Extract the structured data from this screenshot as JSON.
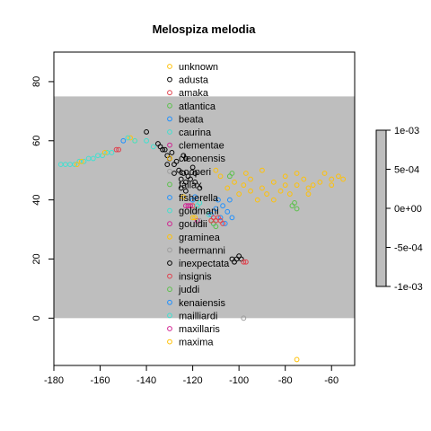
{
  "chart_data": {
    "type": "scatter",
    "title": "Melospiza melodia",
    "xlabel": "",
    "ylabel": "",
    "xlim": [
      -180,
      -50
    ],
    "ylim": [
      -16,
      90
    ],
    "x_ticks": [
      -180,
      -160,
      -140,
      -120,
      -100,
      -80,
      -60
    ],
    "y_ticks": [
      0,
      20,
      40,
      60,
      80
    ],
    "grid": false,
    "background_band": {
      "y_range": [
        0,
        75
      ],
      "color": "#bebebe"
    },
    "legend_position": "top-center",
    "marker": "open-circle",
    "colorbar": {
      "labels": [
        "1e-03",
        "5e-04",
        "0e+00",
        "-5e-04",
        "-1e-03"
      ],
      "range": [
        -0.001,
        0.001
      ],
      "color": "#bebebe"
    },
    "series": [
      {
        "name": "unknown",
        "color": "#ffc107",
        "points": [
          [
            -98,
            45
          ],
          [
            -95,
            47
          ],
          [
            -90,
            44
          ],
          [
            -85,
            46
          ],
          [
            -80,
            48
          ],
          [
            -75,
            45
          ],
          [
            -70,
            44
          ],
          [
            -65,
            46
          ],
          [
            -60,
            47
          ],
          [
            -57,
            48
          ],
          [
            -55,
            47
          ],
          [
            -88,
            42
          ],
          [
            -92,
            40
          ],
          [
            -100,
            42
          ],
          [
            -105,
            44
          ],
          [
            -108,
            48
          ],
          [
            -110,
            50
          ],
          [
            -82,
            43
          ],
          [
            -78,
            42
          ],
          [
            -72,
            47
          ],
          [
            -68,
            45
          ],
          [
            -63,
            49
          ],
          [
            -85,
            40
          ],
          [
            -95,
            43
          ],
          [
            -102,
            46
          ],
          [
            -97,
            49
          ],
          [
            -90,
            50
          ],
          [
            -80,
            45
          ],
          [
            -75,
            49
          ],
          [
            -70,
            42
          ],
          [
            -60,
            45
          ],
          [
            -145,
            60
          ],
          [
            -147,
            61
          ],
          [
            -75,
            -14
          ]
        ]
      },
      {
        "name": "adusta",
        "color": "#000000",
        "points": [
          [
            -117,
            44
          ],
          [
            -119,
            46
          ]
        ]
      },
      {
        "name": "amaka",
        "color": "#e0404c",
        "points": [
          [
            -120,
            38
          ]
        ]
      },
      {
        "name": "atlantica",
        "color": "#5cc14c",
        "points": [
          [
            -77,
            38
          ],
          [
            -76,
            39
          ],
          [
            -75,
            37
          ]
        ]
      },
      {
        "name": "beata",
        "color": "#1e90ff",
        "points": [
          [
            -107,
            38
          ],
          [
            -105,
            36
          ],
          [
            -103,
            34
          ],
          [
            -108,
            34
          ],
          [
            -110,
            37
          ],
          [
            -112,
            35
          ],
          [
            -109,
            40
          ],
          [
            -104,
            40
          ],
          [
            -106,
            32
          ],
          [
            -111,
            32
          ]
        ]
      },
      {
        "name": "caurina",
        "color": "#40e0d0",
        "points": [
          [
            -137,
            58
          ],
          [
            -140,
            60
          ],
          [
            -145,
            60
          ],
          [
            -148,
            61
          ]
        ]
      },
      {
        "name": "clementae",
        "color": "#d02090",
        "points": [
          [
            -118,
            33
          ]
        ]
      },
      {
        "name": "cleonensis",
        "color": "#ffc107",
        "points": [
          [
            -124,
            41
          ]
        ]
      },
      {
        "name": "cooperi",
        "color": "#9e9e9e",
        "points": [
          [
            -117,
            33
          ],
          [
            -116,
            32
          ]
        ]
      },
      {
        "name": "fallax",
        "color": "#5cc14c",
        "points": [
          [
            -111,
            32
          ],
          [
            -112,
            33
          ],
          [
            -110,
            31
          ]
        ]
      },
      {
        "name": "fisherella",
        "color": "#1e90ff",
        "points": [
          [
            -120,
            40
          ],
          [
            -119,
            41
          ]
        ]
      },
      {
        "name": "goldmani",
        "color": "#40e0d0",
        "points": [
          [
            -113,
            35
          ]
        ]
      },
      {
        "name": "gouldii",
        "color": "#d02090",
        "points": [
          [
            -122,
            38
          ],
          [
            -123,
            38
          ]
        ]
      },
      {
        "name": "graminea",
        "color": "#ffc107",
        "points": [
          [
            -119,
            34
          ],
          [
            -120,
            34
          ]
        ]
      },
      {
        "name": "heermanni",
        "color": "#9e9e9e",
        "points": [
          [
            -119,
            36
          ],
          [
            -118,
            37
          ],
          [
            -120,
            36
          ],
          [
            -98,
            0
          ]
        ]
      },
      {
        "name": "inexpectata",
        "color": "#000000",
        "points": [
          [
            -133,
            57
          ],
          [
            -131,
            55
          ],
          [
            -130,
            54
          ],
          [
            -128,
            52
          ],
          [
            -126,
            50
          ],
          [
            -124,
            49
          ],
          [
            -122,
            48
          ],
          [
            -127,
            53
          ],
          [
            -129,
            56
          ],
          [
            -125,
            47
          ],
          [
            -123,
            46
          ],
          [
            -131,
            52
          ],
          [
            -134,
            58
          ],
          [
            -135,
            59
          ],
          [
            -121,
            47
          ],
          [
            -132,
            57
          ],
          [
            -124,
            55
          ],
          [
            -123,
            54
          ],
          [
            -120,
            51
          ],
          [
            -119,
            49
          ],
          [
            -125,
            44
          ],
          [
            -123,
            43
          ],
          [
            -128,
            49
          ],
          [
            -103,
            20
          ],
          [
            -101,
            20
          ],
          [
            -100,
            21
          ],
          [
            -102,
            19
          ],
          [
            -99,
            20
          ],
          [
            -140,
            63
          ]
        ]
      },
      {
        "name": "insignis",
        "color": "#e0404c",
        "points": [
          [
            -153,
            57
          ],
          [
            -152,
            57
          ],
          [
            -112,
            33
          ],
          [
            -111,
            34
          ],
          [
            -110,
            33
          ],
          [
            -109,
            34
          ],
          [
            -108,
            33
          ],
          [
            -107,
            32
          ],
          [
            -98,
            19
          ],
          [
            -97,
            19
          ]
        ]
      },
      {
        "name": "juddi",
        "color": "#5cc14c",
        "points": [
          [
            -104,
            48
          ],
          [
            -103,
            49
          ]
        ]
      },
      {
        "name": "kenaiensis",
        "color": "#1e90ff",
        "points": [
          [
            -150,
            60
          ]
        ]
      },
      {
        "name": "mailliardi",
        "color": "#40e0d0",
        "points": [
          [
            -177,
            52
          ],
          [
            -175,
            52
          ],
          [
            -173,
            52
          ],
          [
            -171,
            52
          ],
          [
            -169,
            53
          ],
          [
            -167,
            53
          ],
          [
            -165,
            54
          ],
          [
            -163,
            54
          ],
          [
            -161,
            55
          ],
          [
            -159,
            55
          ],
          [
            -157,
            56
          ],
          [
            -155,
            56
          ],
          [
            -117,
            39
          ],
          [
            -118,
            38
          ]
        ]
      },
      {
        "name": "maxillaris",
        "color": "#d02090",
        "points": [
          [
            -121,
            38
          ]
        ]
      },
      {
        "name": "maxima",
        "color": "#ffc107",
        "points": [
          [
            -170,
            52
          ],
          [
            -168,
            53
          ],
          [
            -158,
            56
          ]
        ]
      }
    ]
  }
}
